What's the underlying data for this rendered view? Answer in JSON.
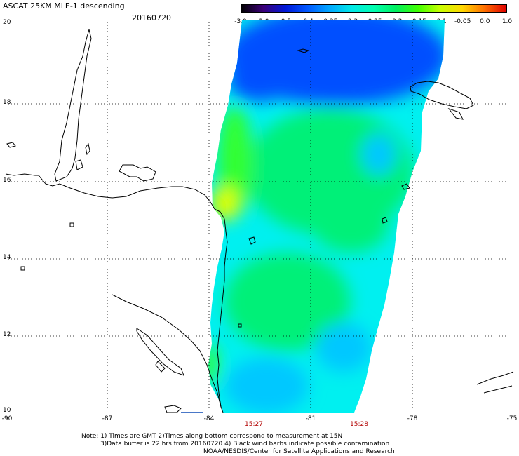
{
  "header": {
    "title": "ASCAT 25KM MLE-1 descending",
    "date": "20160720"
  },
  "colorbar": {
    "labels": [
      "-3.0",
      "-1.0",
      "-0.5",
      "-0.4",
      "-0.35",
      "-0.3",
      "-0.25",
      "-0.2",
      "-0.15",
      "-0.1",
      "-0.05",
      "0.0",
      "1.0"
    ],
    "colors": [
      "#000000",
      "#3c0078",
      "#0018d8",
      "#0058ff",
      "#00a8ff",
      "#00e8e8",
      "#00ffb0",
      "#00f060",
      "#40ff00",
      "#c8ff00",
      "#ffd800",
      "#ff7000",
      "#e00000"
    ]
  },
  "axes": {
    "lat_ticks": [
      "20",
      "18",
      "16",
      "14",
      "12",
      "10"
    ],
    "lon_ticks": [
      "-90",
      "-87",
      "-84",
      "-81",
      "-78",
      "-75"
    ]
  },
  "times": [
    "15:27",
    "15:28"
  ],
  "notes": {
    "line1": "Note: 1) Times are GMT 2)Times along bottom correspond to measurement at 15N",
    "line2": "3)Data buffer is 22 hrs from 20160720 4) Black wind barbs indicate possible contamination",
    "line3": "NOAA/NESDIS/Center for Satellite Applications and Research"
  },
  "map_colors": {
    "blue": "#0050ff",
    "light_blue": "#00c8ff",
    "cyan": "#00f0f0",
    "green": "#00f078",
    "bright_green": "#30ff30",
    "yellow": "#e0ff00",
    "coast": "#000000"
  }
}
